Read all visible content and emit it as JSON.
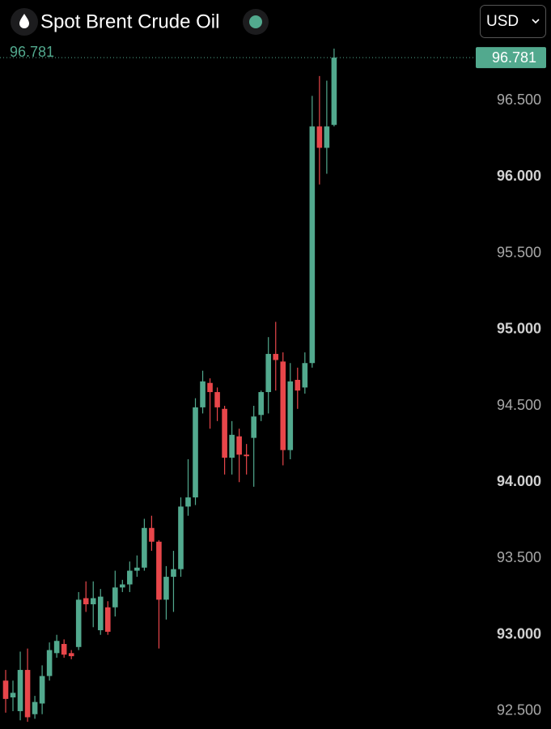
{
  "chart_data": {
    "type": "candlestick",
    "title": "Spot Brent Crude Oil",
    "currency": "USD",
    "last_price": 96.781,
    "up_color": "#52a98e",
    "down_color": "#e8464a",
    "ylim": [
      92.383,
      96.893
    ],
    "yticks": [
      {
        "value": 92.5,
        "label": "92.500"
      },
      {
        "value": 93,
        "label": "93.000"
      },
      {
        "value": 93.5,
        "label": "93.500"
      },
      {
        "value": 94,
        "label": "94.000"
      },
      {
        "value": 94.5,
        "label": "94.500"
      },
      {
        "value": 95,
        "label": "95.000"
      },
      {
        "value": 95.5,
        "label": "95.500"
      },
      {
        "value": 96,
        "label": "96.000"
      },
      {
        "value": 96.5,
        "label": "96.500"
      }
    ],
    "open": [
      92.7,
      92.59,
      92.5,
      92.77,
      92.48,
      92.55,
      92.73,
      92.88,
      92.94,
      92.88,
      92.92,
      93.24,
      93.2,
      93.03,
      93.18,
      93.18,
      93.31,
      93.33,
      93.42,
      93.44,
      93.7,
      93.61,
      93.23,
      93.38,
      93.43,
      93.84,
      93.9,
      94.49,
      94.65,
      94.59,
      94.48,
      94.16,
      94.3,
      94.18,
      94.29,
      94.44,
      94.59,
      94.84,
      94.79,
      94.21,
      94.67,
      94.62,
      94.78,
      96.33,
      96.19,
      96.34
    ],
    "high": [
      92.77,
      92.7,
      92.89,
      92.91,
      92.6,
      92.8,
      92.95,
      93.0,
      92.97,
      92.9,
      93.28,
      93.35,
      93.35,
      93.3,
      93.22,
      93.42,
      93.36,
      93.48,
      93.52,
      93.76,
      93.78,
      93.62,
      93.45,
      93.55,
      93.9,
      94.15,
      94.55,
      94.73,
      94.68,
      94.62,
      94.5,
      94.4,
      94.35,
      94.25,
      94.5,
      94.6,
      94.95,
      95.05,
      94.85,
      94.78,
      94.75,
      94.85,
      96.53,
      96.66,
      96.63,
      96.84
    ],
    "low": [
      92.49,
      92.5,
      92.44,
      92.43,
      92.45,
      92.48,
      92.7,
      92.85,
      92.85,
      92.84,
      92.9,
      93.15,
      93.05,
      93.0,
      93.0,
      93.12,
      93.28,
      93.28,
      93.38,
      93.42,
      93.55,
      92.91,
      93.1,
      93.15,
      93.38,
      93.78,
      93.85,
      94.45,
      94.35,
      94.4,
      94.05,
      94.05,
      94.0,
      94.05,
      93.97,
      94.4,
      94.45,
      94.6,
      94.11,
      94.15,
      94.48,
      94.58,
      94.75,
      95.95,
      96.02,
      96.33
    ],
    "close": [
      92.58,
      92.62,
      92.77,
      92.46,
      92.56,
      92.73,
      92.9,
      92.96,
      92.87,
      92.86,
      93.23,
      93.2,
      93.24,
      93.25,
      93.02,
      93.31,
      93.33,
      93.42,
      93.44,
      93.7,
      93.61,
      93.23,
      93.38,
      93.43,
      93.84,
      93.9,
      94.49,
      94.66,
      94.59,
      94.49,
      94.16,
      94.31,
      94.18,
      94.17,
      94.43,
      94.59,
      94.84,
      94.8,
      94.21,
      94.66,
      94.6,
      94.78,
      96.33,
      96.19,
      96.33,
      96.781
    ]
  }
}
